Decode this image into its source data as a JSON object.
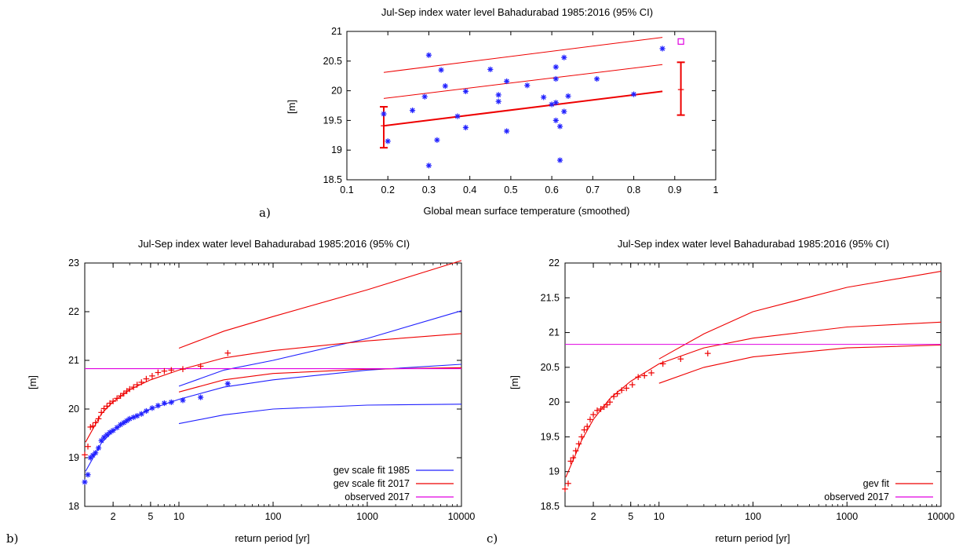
{
  "colors": {
    "blue": "#2020ff",
    "red": "#ee0000",
    "magenta": "#e000e0",
    "darkblue": "#0000cc"
  },
  "chart_data": [
    {
      "panel": "a)",
      "type": "scatter",
      "title": "Jul-Sep index water level Bahadurabad 1985:2016 (95% CI)",
      "xlabel": "Global mean surface temperature (smoothed)",
      "ylabel": "[m]",
      "xlim": [
        0.1,
        1
      ],
      "ylim": [
        18.5,
        21
      ],
      "xticks": [
        "0.1",
        "0.2",
        "0.3",
        "0.4",
        "0.5",
        "0.6",
        "0.7",
        "0.8",
        "0.9",
        "1"
      ],
      "yticks": [
        "18.5",
        "19",
        "19.5",
        "20",
        "20.5",
        "21"
      ],
      "grid": false,
      "points": [
        [
          0.19,
          19.61
        ],
        [
          0.2,
          19.15
        ],
        [
          0.26,
          19.67
        ],
        [
          0.29,
          19.9
        ],
        [
          0.3,
          20.6
        ],
        [
          0.3,
          18.74
        ],
        [
          0.32,
          19.17
        ],
        [
          0.33,
          20.35
        ],
        [
          0.34,
          20.08
        ],
        [
          0.37,
          19.57
        ],
        [
          0.39,
          19.38
        ],
        [
          0.39,
          19.99
        ],
        [
          0.45,
          20.36
        ],
        [
          0.47,
          19.93
        ],
        [
          0.47,
          19.82
        ],
        [
          0.49,
          20.16
        ],
        [
          0.49,
          19.32
        ],
        [
          0.54,
          20.09
        ],
        [
          0.58,
          19.89
        ],
        [
          0.6,
          19.77
        ],
        [
          0.61,
          19.8
        ],
        [
          0.61,
          20.2
        ],
        [
          0.61,
          19.5
        ],
        [
          0.61,
          20.4
        ],
        [
          0.62,
          18.83
        ],
        [
          0.62,
          19.4
        ],
        [
          0.63,
          19.65
        ],
        [
          0.63,
          20.56
        ],
        [
          0.64,
          19.91
        ],
        [
          0.71,
          20.2
        ],
        [
          0.8,
          19.94
        ],
        [
          0.87,
          20.71
        ]
      ],
      "fit_lines": {
        "x": [
          0.19,
          0.87
        ],
        "central": [
          19.41,
          19.99
        ],
        "upper_1": [
          19.87,
          20.44
        ],
        "upper_2": [
          20.31,
          20.9
        ]
      },
      "errorbars": [
        {
          "x": 0.19,
          "y": 19.41,
          "low": 19.04,
          "high": 19.73
        },
        {
          "x": 0.915,
          "y": 20.02,
          "low": 19.59,
          "high": 20.48
        }
      ],
      "observed_2017": {
        "x": 0.915,
        "y": 20.83
      }
    },
    {
      "panel": "b)",
      "type": "line",
      "title": "Jul-Sep index water level Bahadurabad 1985:2016 (95% CI)",
      "xlabel": "return period [yr]",
      "ylabel": "[m]",
      "xscale": "log",
      "xlim": [
        1,
        10000
      ],
      "ylim": [
        18,
        23
      ],
      "xticks": [
        "2",
        "5",
        "10",
        "100",
        "1000",
        "10000"
      ],
      "yticks": [
        "18",
        "19",
        "20",
        "21",
        "22",
        "23"
      ],
      "legend_position": "bottom-right",
      "series": [
        {
          "name": "gev scale fit 1985",
          "color": "blue",
          "central": {
            "x": [
              1.02,
              1.5,
              2,
              3,
              5,
              10,
              30,
              100,
              1000,
              10000
            ],
            "y": [
              18.72,
              19.3,
              19.55,
              19.8,
              20.0,
              20.2,
              20.45,
              20.6,
              20.8,
              20.92
            ]
          },
          "upper": {
            "x": [
              10,
              30,
              100,
              1000,
              10000
            ],
            "y": [
              20.47,
              20.8,
              21.0,
              21.45,
              22.02
            ]
          },
          "lower": {
            "x": [
              10,
              30,
              100,
              1000,
              10000
            ],
            "y": [
              19.7,
              19.88,
              20.0,
              20.08,
              20.1
            ]
          }
        },
        {
          "name": "gev scale fit 2017",
          "color": "red",
          "central": {
            "x": [
              1.02,
              1.5,
              2,
              3,
              5,
              10,
              30,
              100,
              1000,
              10000
            ],
            "y": [
              19.32,
              19.9,
              20.15,
              20.4,
              20.6,
              20.8,
              21.05,
              21.2,
              21.4,
              21.55
            ]
          },
          "upper": {
            "x": [
              10,
              30,
              100,
              1000,
              10000
            ],
            "y": [
              21.25,
              21.6,
              21.9,
              22.45,
              23.05
            ]
          },
          "lower": {
            "x": [
              10,
              30,
              100,
              1000,
              10000
            ],
            "y": [
              20.35,
              20.6,
              20.73,
              20.82,
              20.85
            ]
          }
        },
        {
          "name": "observed 2017",
          "color": "magenta",
          "y": 20.83
        }
      ],
      "observations_1985": {
        "T": [
          1.0,
          1.08,
          1.15,
          1.22,
          1.3,
          1.4,
          1.5,
          1.6,
          1.72,
          1.85,
          2.0,
          2.2,
          2.4,
          2.6,
          2.8,
          3.0,
          3.3,
          3.6,
          4.0,
          4.5,
          5.2,
          6.0,
          7.0,
          8.3,
          11.0,
          17.0,
          33.0
        ],
        "y": [
          18.5,
          18.65,
          19.0,
          19.05,
          19.1,
          19.2,
          19.35,
          19.42,
          19.47,
          19.52,
          19.56,
          19.62,
          19.68,
          19.72,
          19.76,
          19.8,
          19.83,
          19.86,
          19.9,
          19.96,
          20.02,
          20.07,
          20.12,
          20.14,
          20.18,
          20.24,
          20.52
        ]
      },
      "observations_2017": {
        "T": [
          1.0,
          1.08,
          1.15,
          1.22,
          1.3,
          1.4,
          1.5,
          1.6,
          1.72,
          1.85,
          2.0,
          2.2,
          2.4,
          2.6,
          2.8,
          3.0,
          3.3,
          3.6,
          4.0,
          4.5,
          5.2,
          6.0,
          7.0,
          8.3,
          11.0,
          17.0,
          33.0
        ],
        "y": [
          19.06,
          19.23,
          19.63,
          19.65,
          19.72,
          19.8,
          19.93,
          20.01,
          20.06,
          20.12,
          20.16,
          20.22,
          20.27,
          20.32,
          20.37,
          20.41,
          20.45,
          20.5,
          20.55,
          20.62,
          20.68,
          20.75,
          20.78,
          20.8,
          20.82,
          20.88,
          21.15
        ]
      }
    },
    {
      "panel": "c)",
      "type": "line",
      "title": "Jul-Sep index water level Bahadurabad 1985:2016 (95% CI)",
      "xlabel": "return period [yr]",
      "ylabel": "[m]",
      "xscale": "log",
      "xlim": [
        1,
        10000
      ],
      "ylim": [
        18.5,
        22
      ],
      "xticks": [
        "2",
        "5",
        "10",
        "100",
        "1000",
        "10000"
      ],
      "yticks": [
        "18.5",
        "19",
        "19.5",
        "20",
        "20.5",
        "21",
        "21.5",
        "22"
      ],
      "legend_position": "bottom-right",
      "series": [
        {
          "name": "gev fit",
          "color": "red",
          "central": {
            "x": [
              1.02,
              1.5,
              2,
              3,
              5,
              10,
              30,
              100,
              1000,
              10000
            ],
            "y": [
              18.92,
              19.45,
              19.75,
              20.05,
              20.3,
              20.55,
              20.78,
              20.92,
              21.08,
              21.15
            ]
          },
          "upper": {
            "x": [
              10,
              30,
              100,
              1000,
              10000
            ],
            "y": [
              20.62,
              20.98,
              21.3,
              21.65,
              21.88
            ]
          },
          "lower": {
            "x": [
              10,
              30,
              100,
              1000,
              10000
            ],
            "y": [
              20.27,
              20.5,
              20.65,
              20.78,
              20.82
            ]
          }
        },
        {
          "name": "observed 2017",
          "color": "magenta",
          "y": 20.83
        }
      ],
      "observations": {
        "T": [
          1.0,
          1.08,
          1.15,
          1.22,
          1.3,
          1.4,
          1.5,
          1.6,
          1.72,
          1.85,
          2.0,
          2.2,
          2.4,
          2.6,
          2.8,
          3.0,
          3.3,
          3.6,
          4.0,
          4.5,
          5.2,
          6.0,
          7.0,
          8.3,
          11.0,
          17.0,
          33.0
        ],
        "y": [
          18.75,
          18.83,
          19.15,
          19.2,
          19.3,
          19.4,
          19.5,
          19.6,
          19.65,
          19.75,
          19.82,
          19.88,
          19.9,
          19.93,
          19.96,
          20.0,
          20.08,
          20.12,
          20.17,
          20.2,
          20.25,
          20.36,
          20.38,
          20.42,
          20.55,
          20.62,
          20.7
        ]
      }
    }
  ]
}
